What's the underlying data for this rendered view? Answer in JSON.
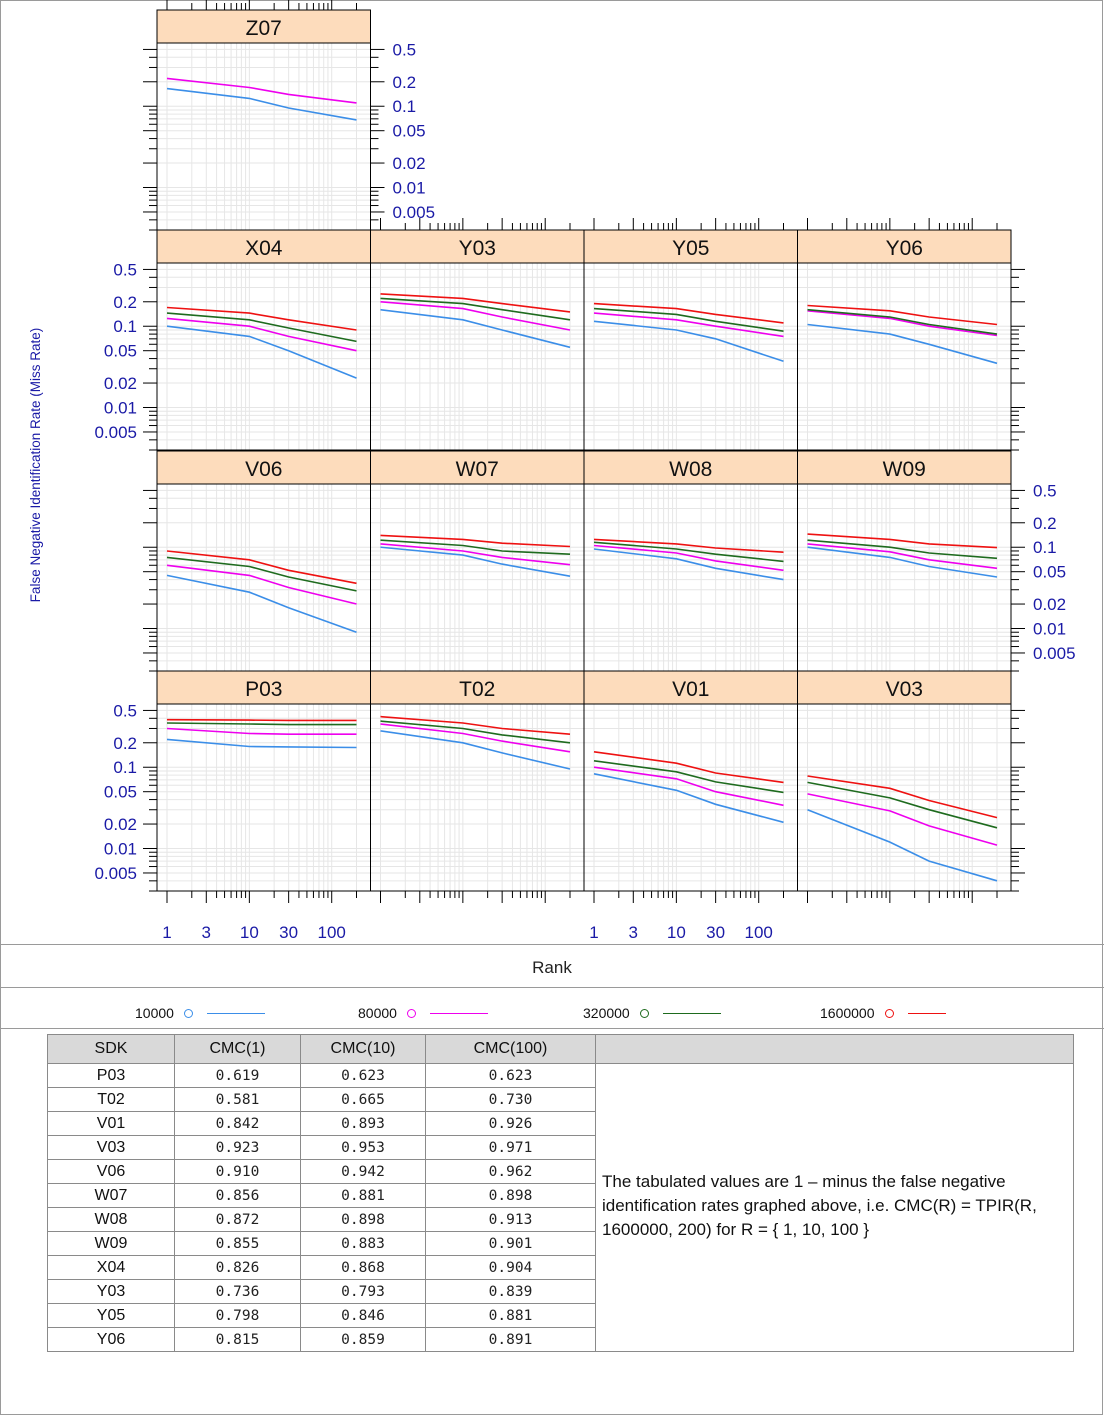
{
  "chart_data": {
    "type": "line",
    "ylabel": "False Negative Identification Rate (Miss Rate)",
    "xlabel": "Rank",
    "x_scale": "log",
    "y_scale": "log",
    "xlim": [
      1,
      200
    ],
    "ylim": [
      0.003,
      0.6
    ],
    "x_ticks": [
      1,
      3,
      10,
      30,
      100
    ],
    "y_ticks": [
      0.5,
      0.2,
      0.1,
      0.05,
      0.02,
      0.01,
      0.005
    ],
    "y_tick_labels": [
      "0.5",
      "0.2",
      "0.1",
      "0.05",
      "0.02",
      "0.01",
      "0.005"
    ],
    "series_names": [
      "10000",
      "80000",
      "320000",
      "1600000"
    ],
    "series_colors": [
      "#3b8ee8",
      "#ee00ee",
      "#1e6b1e",
      "#ee1111"
    ],
    "panels": [
      {
        "name": "Z07",
        "values": [
          [
            0.165,
            0.125,
            0.095,
            0.068
          ],
          [
            0.22,
            0.17,
            0.14,
            0.11
          ],
          null,
          null
        ]
      },
      {
        "name": "X04",
        "values": [
          [
            0.1,
            0.075,
            0.05,
            0.023
          ],
          [
            0.125,
            0.1,
            0.075,
            0.05
          ],
          [
            0.145,
            0.12,
            0.095,
            0.065
          ],
          [
            0.17,
            0.145,
            0.12,
            0.09
          ]
        ]
      },
      {
        "name": "Y03",
        "values": [
          [
            0.16,
            0.12,
            0.09,
            0.055
          ],
          [
            0.2,
            0.165,
            0.13,
            0.09
          ],
          [
            0.22,
            0.19,
            0.16,
            0.12
          ],
          [
            0.25,
            0.22,
            0.19,
            0.15
          ]
        ]
      },
      {
        "name": "Y05",
        "values": [
          [
            0.115,
            0.09,
            0.07,
            0.037
          ],
          [
            0.145,
            0.12,
            0.1,
            0.075
          ],
          [
            0.165,
            0.14,
            0.115,
            0.087
          ],
          [
            0.19,
            0.165,
            0.14,
            0.11
          ]
        ]
      },
      {
        "name": "Y06",
        "values": [
          [
            0.105,
            0.08,
            0.06,
            0.035
          ],
          [
            0.155,
            0.125,
            0.1,
            0.077
          ],
          [
            0.16,
            0.13,
            0.105,
            0.08
          ],
          [
            0.18,
            0.155,
            0.13,
            0.105
          ]
        ]
      },
      {
        "name": "V06",
        "values": [
          [
            0.045,
            0.028,
            0.018,
            0.009
          ],
          [
            0.06,
            0.045,
            0.032,
            0.02
          ],
          [
            0.075,
            0.058,
            0.043,
            0.029
          ],
          [
            0.09,
            0.07,
            0.052,
            0.036
          ]
        ]
      },
      {
        "name": "W07",
        "values": [
          [
            0.1,
            0.08,
            0.062,
            0.044
          ],
          [
            0.11,
            0.09,
            0.075,
            0.061
          ],
          [
            0.122,
            0.105,
            0.09,
            0.082
          ],
          [
            0.14,
            0.125,
            0.112,
            0.102
          ]
        ]
      },
      {
        "name": "W08",
        "values": [
          [
            0.095,
            0.072,
            0.055,
            0.04
          ],
          [
            0.105,
            0.085,
            0.068,
            0.052
          ],
          [
            0.115,
            0.095,
            0.082,
            0.067
          ],
          [
            0.125,
            0.11,
            0.098,
            0.087
          ]
        ]
      },
      {
        "name": "W09",
        "values": [
          [
            0.1,
            0.075,
            0.058,
            0.043
          ],
          [
            0.11,
            0.088,
            0.07,
            0.055
          ],
          [
            0.122,
            0.1,
            0.085,
            0.073
          ],
          [
            0.145,
            0.125,
            0.11,
            0.099
          ]
        ]
      },
      {
        "name": "P03",
        "values": [
          [
            0.22,
            0.18,
            0.178,
            0.175
          ],
          [
            0.3,
            0.26,
            0.255,
            0.255
          ],
          [
            0.35,
            0.34,
            0.335,
            0.335
          ],
          [
            0.385,
            0.38,
            0.377,
            0.377
          ]
        ]
      },
      {
        "name": "T02",
        "values": [
          [
            0.28,
            0.2,
            0.15,
            0.095
          ],
          [
            0.34,
            0.26,
            0.21,
            0.155
          ],
          [
            0.37,
            0.3,
            0.25,
            0.2
          ],
          [
            0.42,
            0.35,
            0.3,
            0.255
          ]
        ]
      },
      {
        "name": "V01",
        "values": [
          [
            0.083,
            0.052,
            0.035,
            0.021
          ],
          [
            0.1,
            0.072,
            0.05,
            0.034
          ],
          [
            0.12,
            0.088,
            0.066,
            0.049
          ],
          [
            0.155,
            0.112,
            0.085,
            0.065
          ]
        ]
      },
      {
        "name": "V03",
        "values": [
          [
            0.03,
            0.012,
            0.007,
            0.004
          ],
          [
            0.047,
            0.029,
            0.019,
            0.011
          ],
          [
            0.065,
            0.042,
            0.03,
            0.018
          ],
          [
            0.078,
            0.055,
            0.039,
            0.024
          ]
        ]
      }
    ]
  },
  "legend": {
    "items": [
      {
        "label": "10000",
        "color": "#3b8ee8"
      },
      {
        "label": "80000",
        "color": "#ee00ee"
      },
      {
        "label": "320000",
        "color": "#1e6b1e"
      },
      {
        "label": "1600000",
        "color": "#ee1111"
      }
    ]
  },
  "table": {
    "headers": [
      "SDK",
      "CMC(1)",
      "CMC(10)",
      "CMC(100)"
    ],
    "rows": [
      [
        "P03",
        "0.619",
        "0.623",
        "0.623"
      ],
      [
        "T02",
        "0.581",
        "0.665",
        "0.730"
      ],
      [
        "V01",
        "0.842",
        "0.893",
        "0.926"
      ],
      [
        "V03",
        "0.923",
        "0.953",
        "0.971"
      ],
      [
        "V06",
        "0.910",
        "0.942",
        "0.962"
      ],
      [
        "W07",
        "0.856",
        "0.881",
        "0.898"
      ],
      [
        "W08",
        "0.872",
        "0.898",
        "0.913"
      ],
      [
        "W09",
        "0.855",
        "0.883",
        "0.901"
      ],
      [
        "X04",
        "0.826",
        "0.868",
        "0.904"
      ],
      [
        "Y03",
        "0.736",
        "0.793",
        "0.839"
      ],
      [
        "Y05",
        "0.798",
        "0.846",
        "0.881"
      ],
      [
        "Y06",
        "0.815",
        "0.859",
        "0.891"
      ]
    ],
    "note": "The tabulated values are 1 – minus the false negative identification rates graphed above, i.e. CMC(R) = TPIR(R, 1600000, 200) for R = { 1, 10, 100 }"
  }
}
